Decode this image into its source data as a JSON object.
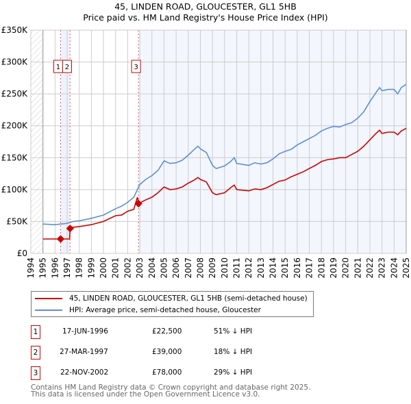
{
  "chart_data": {
    "type": "line",
    "title": "45, LINDEN ROAD, GLOUCESTER, GL1 5HB",
    "subtitle": "Price paid vs. HM Land Registry's House Price Index (HPI)",
    "xlim": [
      1994,
      2025
    ],
    "ylim": [
      0,
      350000
    ],
    "x_ticks": [
      "1994",
      "1995",
      "1996",
      "1997",
      "1998",
      "1999",
      "2000",
      "2001",
      "2002",
      "2003",
      "2004",
      "2005",
      "2006",
      "2007",
      "2008",
      "2009",
      "2010",
      "2011",
      "2012",
      "2013",
      "2014",
      "2015",
      "2016",
      "2017",
      "2018",
      "2019",
      "2020",
      "2021",
      "2022",
      "2023",
      "2024",
      "2025"
    ],
    "y_ticks": [
      {
        "v": 0,
        "label": "£0"
      },
      {
        "v": 50000,
        "label": "£50K"
      },
      {
        "v": 100000,
        "label": "£100K"
      },
      {
        "v": 150000,
        "label": "£150K"
      },
      {
        "v": 200000,
        "label": "£200K"
      },
      {
        "v": 250000,
        "label": "£250K"
      },
      {
        "v": 300000,
        "label": "£300K"
      },
      {
        "v": 350000,
        "label": "£350K"
      }
    ],
    "grid": true,
    "series": [
      {
        "name": "45, LINDEN ROAD, GLOUCESTER, GL1 5HB (semi-detached house)",
        "color": "#cc0000",
        "x": [
          1995,
          1996.46,
          1997.2,
          1997.24,
          1997.5,
          1998,
          1999,
          2000,
          2001,
          2001.5,
          2002,
          2002.5,
          2002.8,
          2002.89,
          2003.5,
          2004,
          2004.5,
          2005,
          2005.5,
          2006,
          2006.5,
          2007,
          2007.5,
          2007.8,
          2008,
          2008.5,
          2009,
          2009.3,
          2010,
          2010.5,
          2010.8,
          2011,
          2012,
          2012.5,
          2013,
          2013.5,
          2014,
          2014.5,
          2015,
          2015.5,
          2016,
          2016.5,
          2017,
          2017.5,
          2018,
          2018.5,
          2019,
          2019.5,
          2020,
          2020.5,
          2021,
          2021.5,
          2022,
          2022.5,
          2022.8,
          2023,
          2023.5,
          2024,
          2024.3,
          2024.6,
          2025
        ],
        "y": [
          22500,
          22500,
          22500,
          39000,
          41000,
          42000,
          45000,
          50000,
          59000,
          60000,
          66000,
          69000,
          88000,
          78000,
          84000,
          88000,
          95000,
          104000,
          100000,
          101000,
          104000,
          110000,
          115000,
          119000,
          116000,
          112000,
          95000,
          92000,
          95000,
          103000,
          107000,
          100000,
          98000,
          101000,
          100000,
          103000,
          108000,
          113000,
          115000,
          120000,
          124000,
          128000,
          133000,
          138000,
          144000,
          147000,
          148000,
          150000,
          150000,
          155000,
          160000,
          168000,
          178000,
          188000,
          193000,
          188000,
          190000,
          190000,
          186000,
          192000,
          196000
        ]
      },
      {
        "name": "HPI: Average price, semi-detached house, Gloucester",
        "color": "#5b8fd6",
        "x": [
          1995,
          1996,
          1997,
          1997.5,
          1998,
          1999,
          2000,
          2001,
          2001.5,
          2002,
          2002.5,
          2003,
          2003.5,
          2004,
          2004.5,
          2005,
          2005.5,
          2006,
          2006.5,
          2007,
          2007.5,
          2007.8,
          2008,
          2008.5,
          2009,
          2009.3,
          2010,
          2010.5,
          2010.8,
          2011,
          2012,
          2012.5,
          2013,
          2013.5,
          2014,
          2014.5,
          2015,
          2015.5,
          2016,
          2016.5,
          2017,
          2017.5,
          2018,
          2018.5,
          2019,
          2019.5,
          2020,
          2020.5,
          2021,
          2021.5,
          2022,
          2022.5,
          2022.8,
          2023,
          2023.5,
          2024,
          2024.3,
          2024.6,
          2025
        ],
        "y": [
          46000,
          45000,
          47000,
          50000,
          51000,
          55000,
          60000,
          70000,
          74000,
          80000,
          88000,
          108000,
          116000,
          122000,
          130000,
          145000,
          141000,
          142000,
          146000,
          154000,
          163000,
          168000,
          164000,
          158000,
          138000,
          133000,
          137000,
          144000,
          150000,
          141000,
          138000,
          142000,
          140000,
          142000,
          148000,
          156000,
          160000,
          163000,
          170000,
          175000,
          180000,
          185000,
          192000,
          196000,
          199000,
          198000,
          202000,
          205000,
          212000,
          222000,
          238000,
          252000,
          260000,
          255000,
          257000,
          257000,
          250000,
          260000,
          265000
        ]
      }
    ],
    "sales": [
      {
        "id": "1",
        "x": 1996.46,
        "date": "17-JUN-1996",
        "price_value": 22500,
        "price": "£22,500",
        "hpi": "51% ↓ HPI"
      },
      {
        "id": "2",
        "x": 1997.24,
        "date": "27-MAR-1997",
        "price_value": 39000,
        "price": "£39,000",
        "hpi": "18% ↓ HPI"
      },
      {
        "id": "3",
        "x": 2002.89,
        "date": "22-NOV-2002",
        "price_value": 78000,
        "price": "£78,000",
        "hpi": "29% ↓ HPI"
      }
    ],
    "legend_placement": "below"
  },
  "footer": {
    "line1": "Contains HM Land Registry data © Crown copyright and database right 2025.",
    "line2": "This data is licensed under the Open Government Licence v3.0."
  }
}
